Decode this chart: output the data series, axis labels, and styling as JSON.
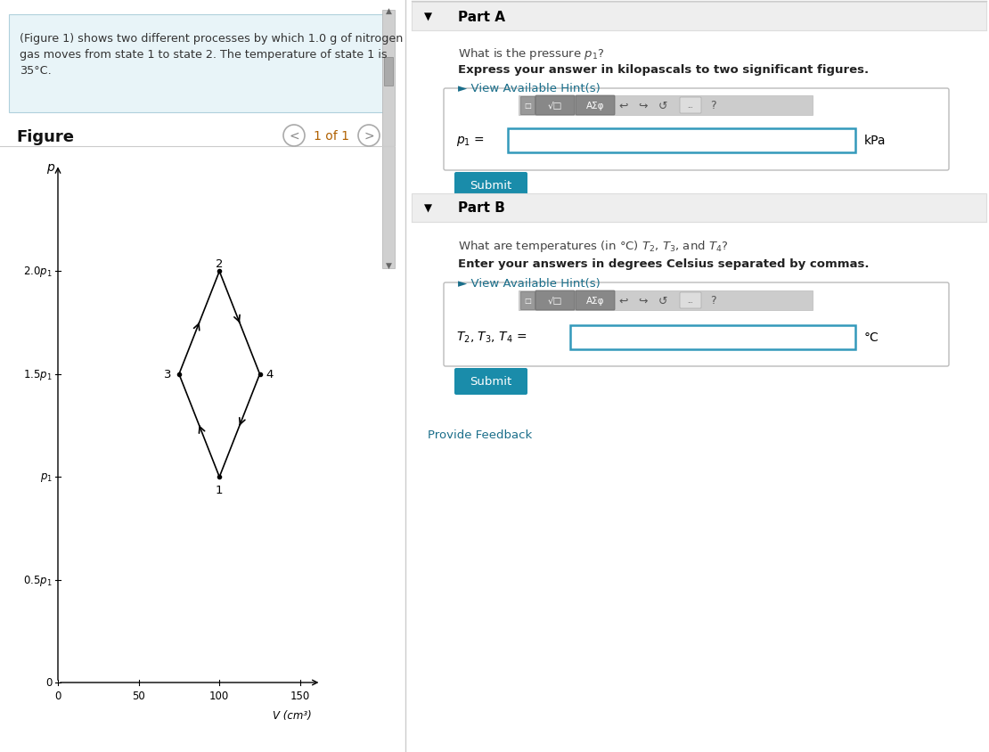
{
  "fig_width": 11.1,
  "fig_height": 8.45,
  "bg_color": "#ffffff",
  "left_panel_text_line1": "(Figure 1) shows two different processes by which 1.0 g of nitrogen",
  "left_panel_text_line2": "gas moves from state 1 to state 2. The temperature of state 1 is",
  "left_panel_text_line3": "35°C.",
  "figure_title": "Figure",
  "figure_nav": "1 of 1",
  "plot_points": {
    "1": [
      100,
      1.0
    ],
    "2": [
      100,
      2.0
    ],
    "3": [
      75,
      1.5
    ],
    "4": [
      125,
      1.5
    ]
  },
  "x_label": "V (cm³)",
  "y_label": "p",
  "part_a_header": "Part A",
  "part_a_q1": "What is the pressure $p_1$?",
  "part_a_q2": "Express your answer in kilopascals to two significant figures.",
  "part_a_hint": "► View Available Hint(s)",
  "part_a_label": "$p_1$ =",
  "part_a_unit": "kPa",
  "part_b_header": "Part B",
  "part_b_q1": "What are temperatures (in °C) $T_2$, $T_3$, and $T_4$?",
  "part_b_q2": "Enter your answers in degrees Celsius separated by commas.",
  "part_b_hint": "► View Available Hint(s)",
  "part_b_label": "$T_2$, $T_3$, $T_4$ =",
  "part_b_unit": "°C",
  "submit_color": "#1a8caa",
  "submit_text_color": "#ffffff",
  "hint_color": "#1a6e8a",
  "link_color": "#1a6e8a",
  "provide_feedback": "Provide Feedback",
  "divider_color": "#cccccc"
}
